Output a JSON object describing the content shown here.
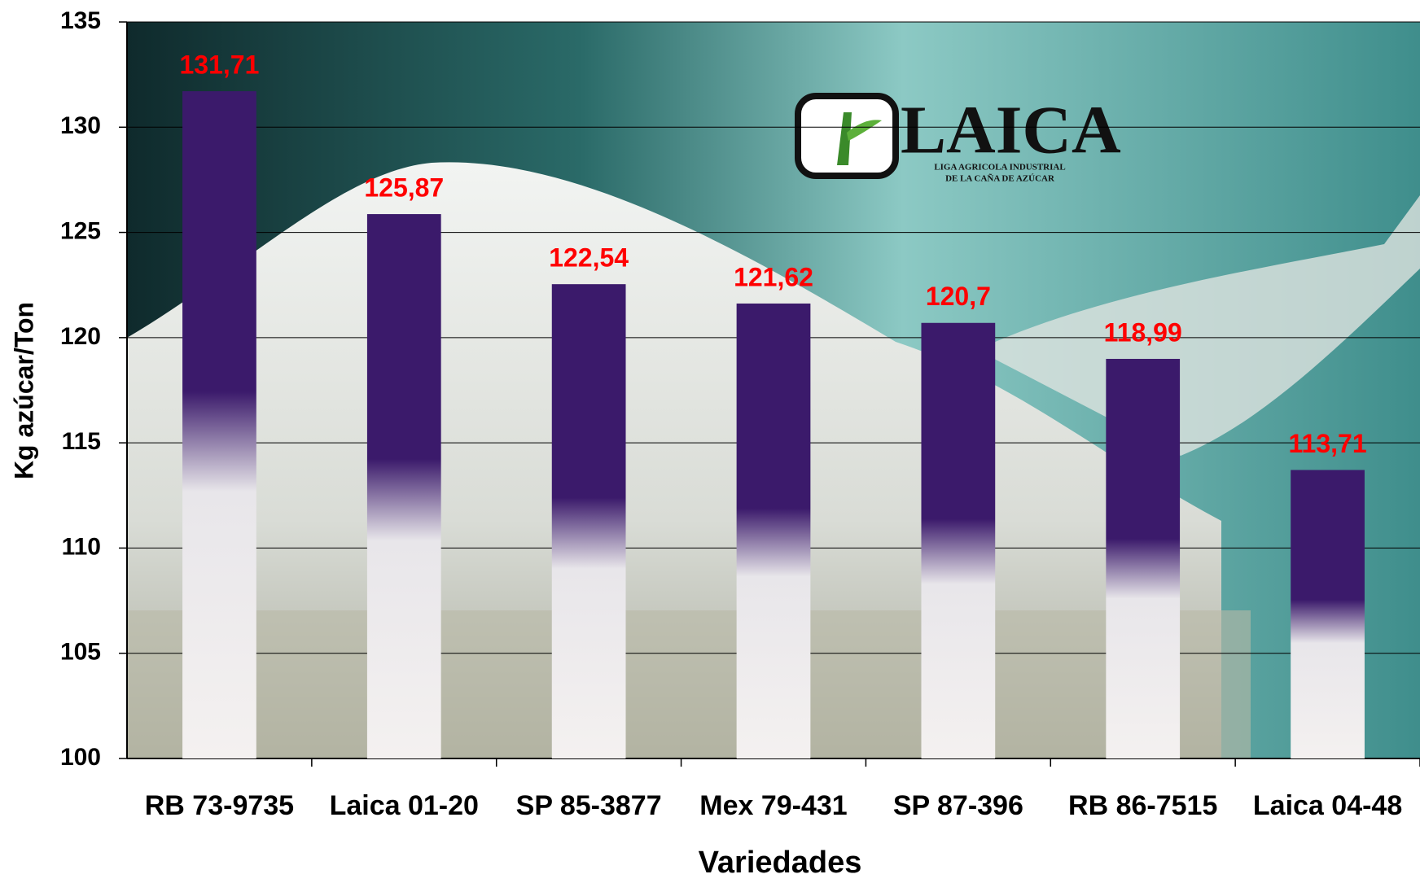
{
  "chart_data": {
    "type": "bar",
    "x_label": "Variedades",
    "y_label": "Kg azúcar/Ton",
    "categories": [
      "RB 73-9735",
      "Laica 01-20",
      "SP 85-3877",
      "Mex 79-431",
      "SP 87-396",
      "RB 86-7515",
      "Laica 04-48"
    ],
    "values": [
      131.71,
      125.87,
      122.54,
      121.62,
      120.7,
      118.99,
      113.71
    ],
    "value_labels": [
      "131,71",
      "125,87",
      "122,54",
      "121,62",
      "120,7",
      "118,99",
      "113,71"
    ],
    "color": "#3b1a6b",
    "label_color": "#ff0000",
    "ylim": [
      100,
      135
    ],
    "yticks": [
      100,
      105,
      110,
      115,
      120,
      125,
      130,
      135
    ],
    "grid": true
  },
  "logo": {
    "name": "LAICA",
    "line1": "LIGA AGRICOLA INDUSTRIAL",
    "line2": "DE LA CAÑA DE AZÚCAR"
  }
}
